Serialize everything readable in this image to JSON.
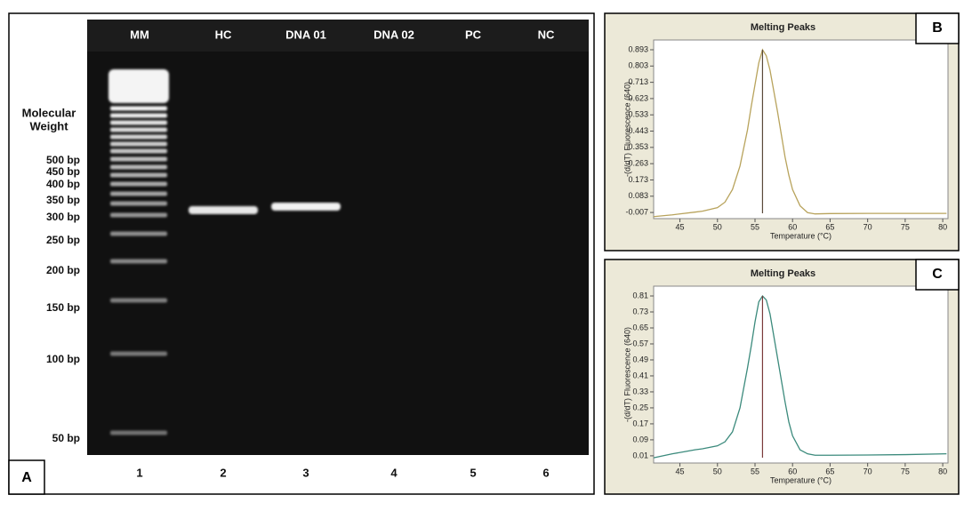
{
  "gel": {
    "panel": "A",
    "lane_labels": [
      "MM",
      "HC",
      "DNA 01",
      "DNA 02",
      "PC",
      "NC"
    ],
    "lane_numbers": [
      1,
      2,
      3,
      4,
      5,
      6
    ],
    "weight_title": [
      "Molecular",
      "Weight"
    ],
    "size_labels": [
      "500 bp",
      "450 bp",
      "400 bp",
      "350 bp",
      "300 bp",
      "250 bp",
      "200 bp",
      "150 bp",
      "100 bp",
      "50 bp"
    ]
  },
  "chart_data": [
    {
      "type": "line",
      "panel": "B",
      "title": "Melting Peaks",
      "x_label": "Temperature (°C)",
      "y_label": "-(d/dT) Fluorescence (640)",
      "x": [
        41.5,
        44,
        47,
        48,
        50,
        51,
        52,
        53,
        54,
        54.5,
        55,
        55.5,
        56,
        56.5,
        57,
        58,
        59,
        59.5,
        60,
        61,
        62,
        63,
        65,
        70,
        75,
        80.5
      ],
      "series": [
        {
          "color": "#b8a35c",
          "values": [
            -0.03,
            -0.02,
            -0.005,
            0.0,
            0.02,
            0.05,
            0.12,
            0.25,
            0.45,
            0.58,
            0.7,
            0.82,
            0.893,
            0.86,
            0.78,
            0.55,
            0.3,
            0.2,
            0.12,
            0.03,
            -0.008,
            -0.015,
            -0.013,
            -0.012,
            -0.012,
            -0.012
          ]
        }
      ],
      "peak_temperature": 56,
      "peak_color": "#5a4a3a",
      "xlim": [
        41.5,
        80.7
      ],
      "xticks": [
        45,
        50,
        55,
        60,
        65,
        70,
        75,
        80
      ],
      "ylim": [
        -0.041,
        0.947
      ],
      "yticks": [
        -0.007,
        0.083,
        0.173,
        0.263,
        0.353,
        0.443,
        0.533,
        0.623,
        0.713,
        0.803,
        0.893
      ]
    },
    {
      "type": "line",
      "panel": "C",
      "title": "Melting Peaks",
      "x_label": "Temperature (°C)",
      "y_label": "-(d/dT) Fluorescence (640)",
      "x": [
        41.5,
        44,
        47,
        48,
        50,
        51,
        52,
        53,
        54,
        54.5,
        55,
        55.5,
        56,
        56.5,
        57,
        58,
        59,
        59.5,
        60,
        61,
        62,
        63,
        65,
        70,
        75,
        80.5
      ],
      "series": [
        {
          "color": "#3b8a7c",
          "values": [
            0.0,
            0.02,
            0.04,
            0.045,
            0.06,
            0.08,
            0.13,
            0.25,
            0.45,
            0.56,
            0.68,
            0.78,
            0.81,
            0.79,
            0.72,
            0.5,
            0.28,
            0.18,
            0.11,
            0.04,
            0.02,
            0.013,
            0.013,
            0.014,
            0.016,
            0.02
          ]
        }
      ],
      "peak_temperature": 56,
      "peak_color": "#7a3a3a",
      "xlim": [
        41.5,
        80.7
      ],
      "xticks": [
        45,
        50,
        55,
        60,
        65,
        70,
        75,
        80
      ],
      "ylim": [
        -0.026,
        0.859
      ],
      "yticks": [
        0.01,
        0.09,
        0.17,
        0.25,
        0.33,
        0.41,
        0.49,
        0.57,
        0.65,
        0.73,
        0.81
      ]
    }
  ]
}
